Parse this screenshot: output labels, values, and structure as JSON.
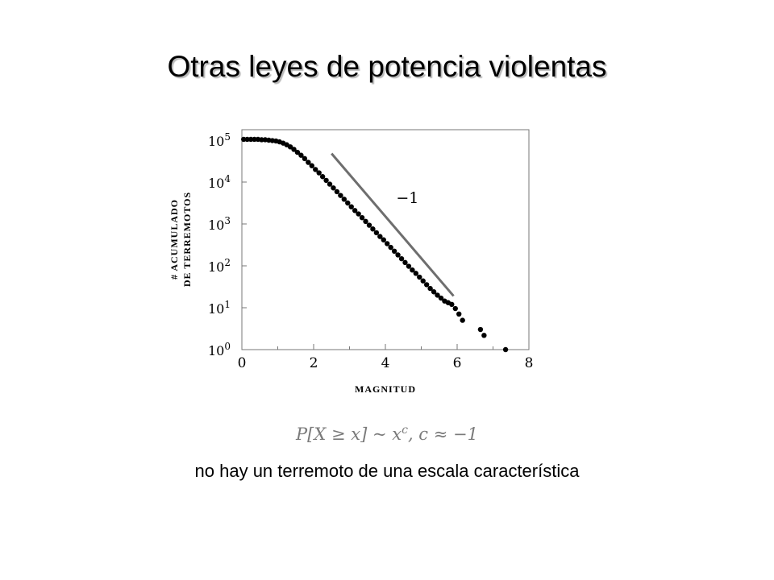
{
  "slide": {
    "title": "Otras leyes de potencia violentas",
    "formula": {
      "lhs": "P[X ≥ x] ~ x",
      "exponent": "c",
      "rhs": ",   c ≈ −1"
    },
    "caption": "no hay un terremoto de una escala característica"
  },
  "chart_data": {
    "type": "scatter",
    "xlabel": "MAGNITUD",
    "ylabel_line1": "# ACUMULADO",
    "ylabel_line2": "DE TERREMOTOS",
    "xlim": [
      0,
      8
    ],
    "ylim_log10": [
      0,
      5.25
    ],
    "y_scale": "log",
    "x_ticks": [
      "0",
      "2",
      "4",
      "6",
      "8"
    ],
    "y_ticks": [
      {
        "base": "10",
        "exp": "0"
      },
      {
        "base": "10",
        "exp": "1"
      },
      {
        "base": "10",
        "exp": "2"
      },
      {
        "base": "10",
        "exp": "3"
      },
      {
        "base": "10",
        "exp": "4"
      },
      {
        "base": "10",
        "exp": "5"
      }
    ],
    "reference_line": {
      "label": "−1",
      "x": [
        2.5,
        5.9
      ],
      "log10_y": [
        4.68,
        1.28
      ],
      "color": "#6e6e6e"
    },
    "series": [
      {
        "x": [
          0.05,
          0.15,
          0.25,
          0.35,
          0.45,
          0.55,
          0.65,
          0.75,
          0.85,
          0.95,
          1.05,
          1.15,
          1.25,
          1.35,
          1.45,
          1.55,
          1.65,
          1.75,
          1.85,
          1.95,
          2.05,
          2.15,
          2.25,
          2.35,
          2.45,
          2.55,
          2.65,
          2.75,
          2.85,
          2.95,
          3.05,
          3.15,
          3.25,
          3.35,
          3.45,
          3.55,
          3.65,
          3.75,
          3.85,
          3.95,
          4.05,
          4.15,
          4.25,
          4.35,
          4.45,
          4.55,
          4.65,
          4.75,
          4.85,
          4.95,
          5.05,
          5.15,
          5.25,
          5.35,
          5.45,
          5.55,
          5.65,
          5.75,
          5.85,
          5.95,
          6.05,
          6.15,
          6.65,
          6.75,
          7.35
        ],
        "log10_y": [
          5.02,
          5.02,
          5.02,
          5.02,
          5.02,
          5.01,
          5.01,
          5.0,
          4.99,
          4.98,
          4.96,
          4.93,
          4.89,
          4.84,
          4.78,
          4.71,
          4.64,
          4.56,
          4.47,
          4.39,
          4.3,
          4.22,
          4.13,
          4.04,
          3.95,
          3.86,
          3.77,
          3.68,
          3.59,
          3.5,
          3.41,
          3.32,
          3.24,
          3.15,
          3.06,
          2.97,
          2.88,
          2.79,
          2.7,
          2.62,
          2.53,
          2.44,
          2.35,
          2.26,
          2.17,
          2.08,
          1.99,
          1.9,
          1.82,
          1.73,
          1.64,
          1.55,
          1.46,
          1.38,
          1.3,
          1.23,
          1.16,
          1.12,
          1.08,
          0.98,
          0.85,
          0.7,
          0.48,
          0.34,
          0.0
        ]
      }
    ]
  }
}
